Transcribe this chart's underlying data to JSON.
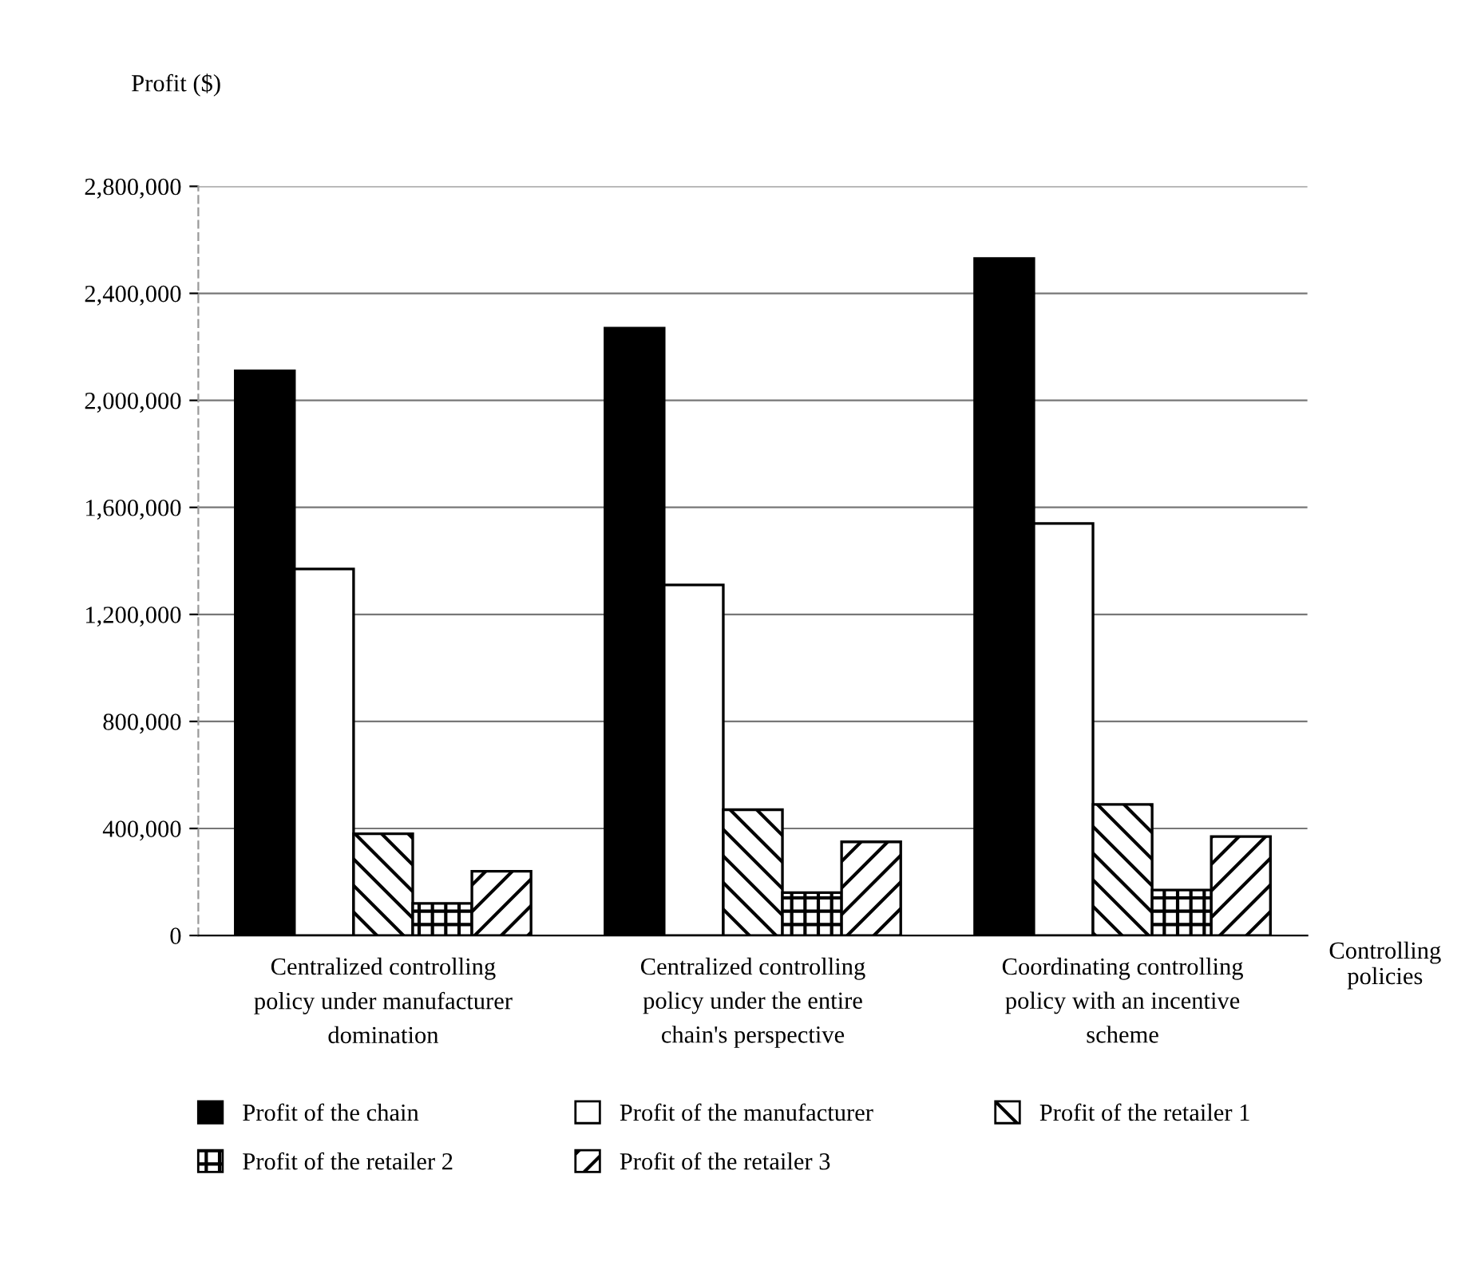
{
  "chart_data": {
    "type": "bar",
    "ylabel": "Profit ($)",
    "xlabel": "Controlling policies",
    "categories": [
      "Centralized controlling\npolicy under manufacturer\ndomination",
      "Centralized controlling\npolicy under the entire\nchain's perspective",
      "Coordinating controlling\npolicy with an incentive\nscheme"
    ],
    "series": [
      {
        "name": "Profit of the chain",
        "color": "#000000",
        "values": [
          2110000,
          2270000,
          2530000
        ]
      },
      {
        "name": "Profit of the manufacturer",
        "color": "#ffffff",
        "values": [
          1370000,
          1310000,
          1540000
        ]
      },
      {
        "name": "Profit of the retailer 1",
        "color": "#000000",
        "values": [
          380000,
          470000,
          490000
        ]
      },
      {
        "name": "Profit of the retailer 2",
        "color": "#000000",
        "values": [
          120000,
          160000,
          170000
        ]
      },
      {
        "name": "Profit of the retailer 3",
        "color": "#000000",
        "values": [
          240000,
          350000,
          370000
        ]
      }
    ],
    "ylim": [
      0,
      2800000
    ],
    "yticks": [
      0,
      {
        "value": 400000,
        "label": "400,000"
      },
      {
        "value": 800000,
        "label": "800,000"
      },
      {
        "value": 1200000,
        "label": "1,200,000"
      },
      {
        "value": 1600000,
        "label": "1,600,000"
      },
      {
        "value": 2000000,
        "label": "2,000,000"
      },
      {
        "value": 2400000,
        "label": "2,400,000"
      },
      {
        "value": 2800000,
        "label": "2,800,000"
      }
    ],
    "grid": "y",
    "legend": "bottom"
  }
}
